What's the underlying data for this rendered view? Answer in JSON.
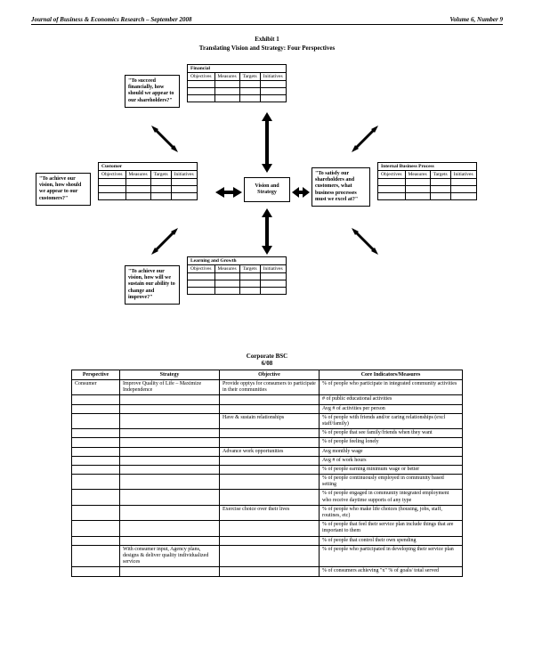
{
  "header": {
    "left": "Journal of Business & Economics Research – September 2008",
    "right": "Volume 6, Number 9"
  },
  "exhibit": {
    "title": "Exhibit 1",
    "subtitle": "Translating Vision and Strategy:  Four Perspectives"
  },
  "center": "Vision and Strategy",
  "persp_cols": [
    "Objectives",
    "Measures",
    "Targets",
    "Initiatives"
  ],
  "financial": {
    "title": "Financial",
    "quote": "\"To succeed financially, how should we appear to our shareholders?\""
  },
  "customer": {
    "title": "Customer",
    "quote": "\"To achieve our vision, how should we appear to our customers?\""
  },
  "internal": {
    "title": "Internal Business Process",
    "quote": "\"To satisfy our shareholders and customers, what business processes must we excel at?\""
  },
  "learning": {
    "title": "Learning and Growth",
    "quote": "\"To achieve our vision, how will we sustain our ability to change and improve?\""
  },
  "corp": {
    "title": "Corporate BSC",
    "date": "6/08",
    "headers": [
      "Perspective",
      "Strategy",
      "Objective",
      "Core Indicators/Measures"
    ],
    "rows": [
      [
        "Consumer",
        "Improve Quality of Life – Maximize Independence",
        "Provide opptys for consumers to participate in their communities",
        "% of people who participate in integrated community activities"
      ],
      [
        "",
        "",
        "",
        "# of public educational activities"
      ],
      [
        "",
        "",
        "",
        "Avg # of activities per person"
      ],
      [
        "",
        "",
        "Have & sustain relationships",
        "% of people with friends and/or caring relationships (excl staff/family)"
      ],
      [
        "",
        "",
        "",
        "% of people that see family/friends when they want"
      ],
      [
        "",
        "",
        "",
        "% of people feeling lonely"
      ],
      [
        "",
        "",
        "Advance work opportunities",
        "Avg monthly wage"
      ],
      [
        "",
        "",
        "",
        "Avg # of work hours"
      ],
      [
        "",
        "",
        "",
        "% of people earning minimum wage or better"
      ],
      [
        "",
        "",
        "",
        "% of people continuously employed in community based setting"
      ],
      [
        "",
        "",
        "",
        "% of people engaged in community integrated employment who receive daytime supports of any type"
      ],
      [
        "",
        "",
        "Exercise choice over their lives",
        "% of people who make life choices (housing, jobs, staff, routines, etc)"
      ],
      [
        "",
        "",
        "",
        "% of people that feel their service plan include things that are important to them"
      ],
      [
        "",
        "",
        "",
        "% of people that control their own spending"
      ],
      [
        "",
        "With consumer input, Agency plans, designs & deliver quality individualized services",
        "",
        "% of people who participated in developing their service plan"
      ],
      [
        "",
        "",
        "",
        "% of consumers achieving \"x\" % of goals/ total served"
      ]
    ]
  }
}
